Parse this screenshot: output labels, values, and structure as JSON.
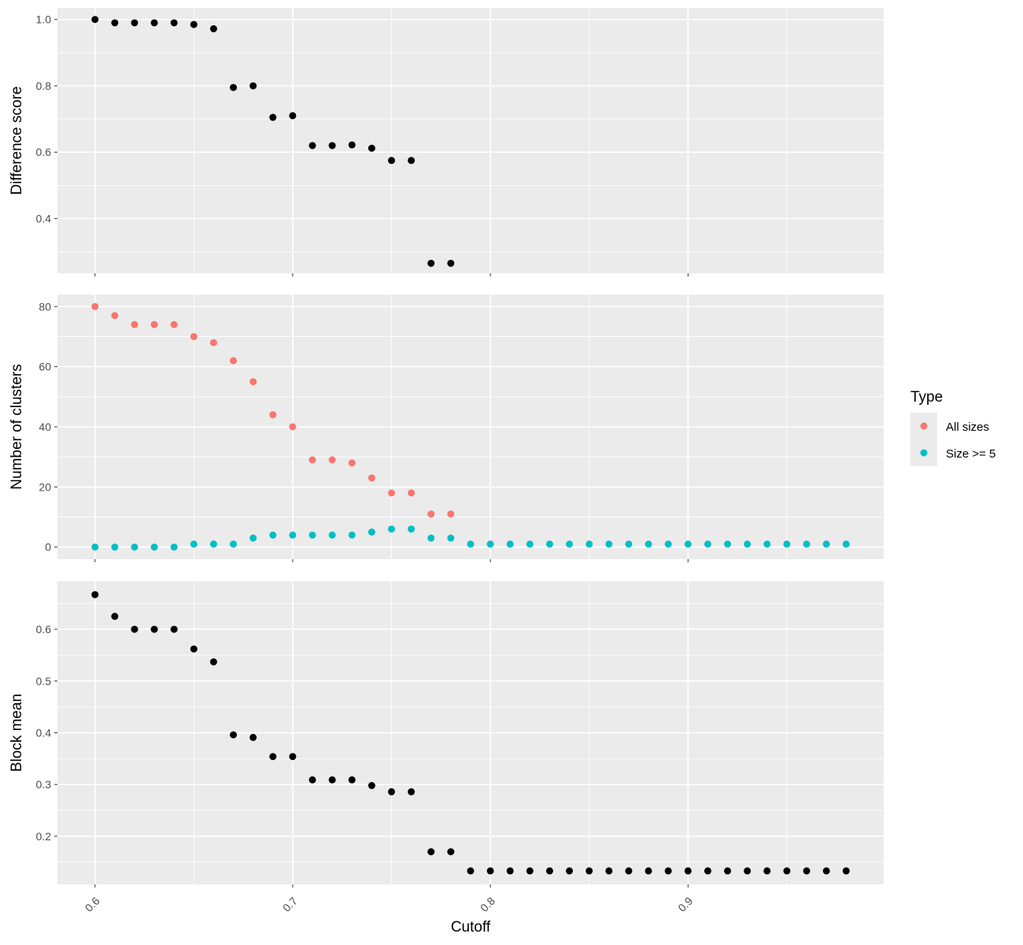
{
  "chart_data": {
    "type": "scatter",
    "xlabel": "Cutoff",
    "xlim": [
      0.581,
      0.999
    ],
    "x_ticks": [
      "0.6",
      "0.7",
      "0.8",
      "0.9"
    ],
    "colors": {
      "panel_bg": "#ebebeb",
      "grid": "#ffffff",
      "point_black": "#000000",
      "all_sizes": "#f8766d",
      "size_ge_5": "#00bfc4"
    },
    "legend": {
      "title": "Type",
      "position": "right",
      "entries": [
        {
          "label": "All sizes",
          "color": "#f8766d"
        },
        {
          "label": "Size >= 5",
          "color": "#00bfc4"
        }
      ]
    },
    "panels": [
      {
        "id": "difference",
        "ylabel": "Difference score",
        "ylim": [
          0.235,
          1.035
        ],
        "y_ticks": [
          "0.4",
          "0.6",
          "0.8",
          "1.0"
        ],
        "series": [
          {
            "color": "#000000",
            "x": [
              0.6,
              0.61,
              0.62,
              0.63,
              0.64,
              0.65,
              0.66,
              0.67,
              0.68,
              0.69,
              0.7,
              0.71,
              0.72,
              0.73,
              0.74,
              0.75,
              0.76,
              0.77,
              0.78
            ],
            "y": [
              1.0,
              0.99,
              0.99,
              0.99,
              0.99,
              0.985,
              0.972,
              0.795,
              0.8,
              0.705,
              0.71,
              0.62,
              0.62,
              0.622,
              0.612,
              0.575,
              0.575,
              0.265,
              0.265
            ]
          }
        ]
      },
      {
        "id": "clusters",
        "ylabel": "Number of clusters",
        "ylim": [
          -4,
          84
        ],
        "y_ticks": [
          "0",
          "20",
          "40",
          "60",
          "80"
        ],
        "series": [
          {
            "name": "All sizes",
            "color": "#f8766d",
            "x": [
              0.6,
              0.61,
              0.62,
              0.63,
              0.64,
              0.65,
              0.66,
              0.67,
              0.68,
              0.69,
              0.7,
              0.71,
              0.72,
              0.73,
              0.74,
              0.75,
              0.76,
              0.77,
              0.78
            ],
            "y": [
              80,
              77,
              74,
              74,
              74,
              70,
              68,
              62,
              55,
              44,
              40,
              29,
              29,
              28,
              23,
              18,
              18,
              11,
              11
            ]
          },
          {
            "name": "Size >= 5",
            "color": "#00bfc4",
            "x": [
              0.6,
              0.61,
              0.62,
              0.63,
              0.64,
              0.65,
              0.66,
              0.67,
              0.68,
              0.69,
              0.7,
              0.71,
              0.72,
              0.73,
              0.74,
              0.75,
              0.76,
              0.77,
              0.78,
              0.79,
              0.8,
              0.81,
              0.82,
              0.83,
              0.84,
              0.85,
              0.86,
              0.87,
              0.88,
              0.89,
              0.9,
              0.91,
              0.92,
              0.93,
              0.94,
              0.95,
              0.96,
              0.97,
              0.98
            ],
            "y": [
              0,
              0,
              0,
              0,
              0,
              1,
              1,
              1,
              3,
              4,
              4,
              4,
              4,
              4,
              5,
              6,
              6,
              3,
              3,
              1,
              1,
              1,
              1,
              1,
              1,
              1,
              1,
              1,
              1,
              1,
              1,
              1,
              1,
              1,
              1,
              1,
              1,
              1,
              1
            ]
          }
        ]
      },
      {
        "id": "block",
        "ylabel": "Block mean",
        "ylim": [
          0.107,
          0.693
        ],
        "y_ticks": [
          "0.2",
          "0.3",
          "0.4",
          "0.5",
          "0.6"
        ],
        "series": [
          {
            "color": "#000000",
            "x": [
              0.6,
              0.61,
              0.62,
              0.63,
              0.64,
              0.65,
              0.66,
              0.67,
              0.68,
              0.69,
              0.7,
              0.71,
              0.72,
              0.73,
              0.74,
              0.75,
              0.76,
              0.77,
              0.78,
              0.79,
              0.8,
              0.81,
              0.82,
              0.83,
              0.84,
              0.85,
              0.86,
              0.87,
              0.88,
              0.89,
              0.9,
              0.91,
              0.92,
              0.93,
              0.94,
              0.95,
              0.96,
              0.97,
              0.98
            ],
            "y": [
              0.667,
              0.625,
              0.6,
              0.6,
              0.6,
              0.562,
              0.537,
              0.396,
              0.391,
              0.354,
              0.354,
              0.309,
              0.309,
              0.309,
              0.298,
              0.286,
              0.286,
              0.17,
              0.17,
              0.133,
              0.133,
              0.133,
              0.133,
              0.133,
              0.133,
              0.133,
              0.133,
              0.133,
              0.133,
              0.133,
              0.133,
              0.133,
              0.133,
              0.133,
              0.133,
              0.133,
              0.133,
              0.133,
              0.133
            ]
          }
        ]
      }
    ]
  }
}
